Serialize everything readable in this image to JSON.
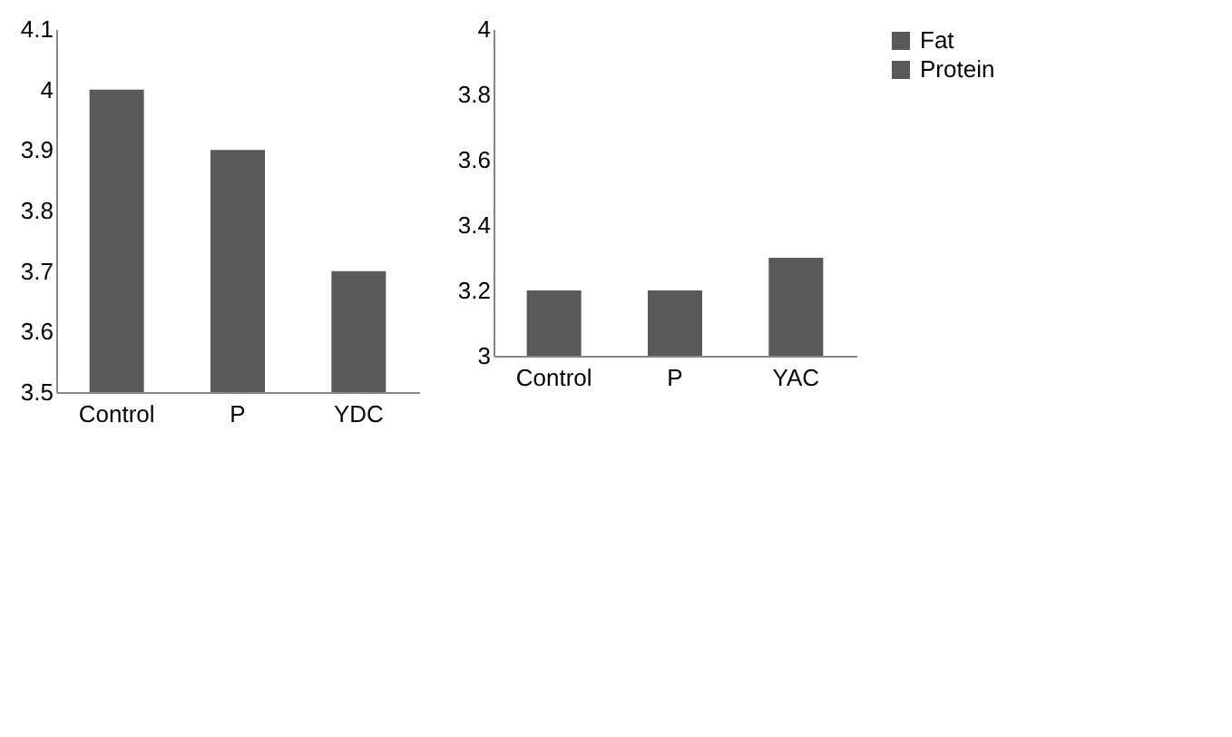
{
  "chart_data": [
    {
      "type": "bar",
      "categories": [
        "Control",
        "P",
        "YDC"
      ],
      "series": [
        {
          "name": "Fat",
          "color": "#595959",
          "values": [
            4,
            3.9,
            3.7
          ]
        }
      ],
      "ylim": [
        3.5,
        4.1
      ],
      "yticks": [
        3.5,
        3.6,
        3.7,
        3.8,
        3.9,
        4,
        4.1
      ],
      "grid": false,
      "legend": "right"
    },
    {
      "type": "bar",
      "categories": [
        "Control",
        "P",
        "YAC"
      ],
      "series": [
        {
          "name": "Protein",
          "color": "#595959",
          "values": [
            3.2,
            3.2,
            3.3
          ]
        }
      ],
      "ylim": [
        3,
        4
      ],
      "yticks": [
        3,
        3.2,
        3.4,
        3.6,
        3.8,
        4
      ],
      "grid": false,
      "legend": "right"
    }
  ]
}
